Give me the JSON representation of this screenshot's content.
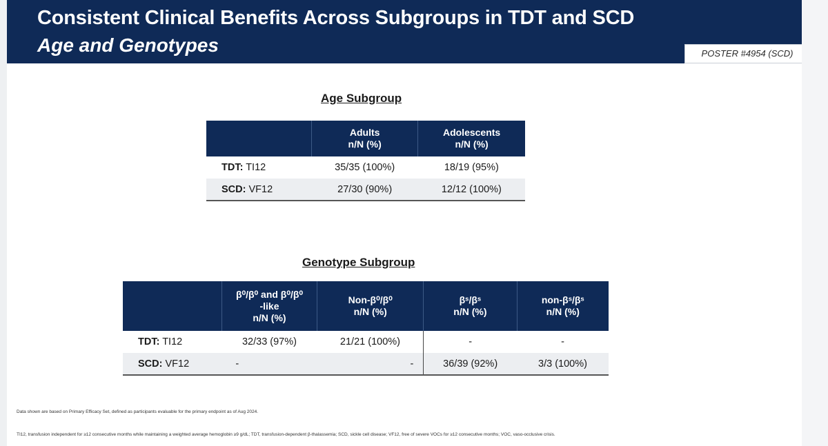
{
  "header": {
    "title_line1": "Consistent Clinical Benefits Across Subgroups in TDT and SCD",
    "title_line2": "Age and Genotypes",
    "poster_tag": "POSTER #4954 (SCD)"
  },
  "age_table": {
    "heading": "Age Subgroup",
    "columns": [
      {
        "line1": "Adults",
        "line2": "n/N (%)"
      },
      {
        "line1": "Adolescents",
        "line2": "n/N (%)"
      }
    ],
    "rows": [
      {
        "label_bold": "TDT:",
        "label_rest": " TI12",
        "cells": [
          "35/35 (100%)",
          "18/19 (95%)"
        ]
      },
      {
        "label_bold": "SCD:",
        "label_rest": " VF12",
        "cells": [
          "27/30 (90%)",
          "12/12 (100%)"
        ]
      }
    ]
  },
  "genotype_table": {
    "heading": "Genotype Subgroup",
    "columns": [
      {
        "line1": "β⁰/β⁰ and β⁰/β⁰",
        "line2": "-like",
        "line3": "n/N (%)"
      },
      {
        "line1": "Non-β⁰/β⁰",
        "line2": "n/N (%)"
      },
      {
        "line1": "βˢ/βˢ",
        "line2": "n/N (%)"
      },
      {
        "line1": "non-βˢ/βˢ",
        "line2": "n/N (%)"
      }
    ],
    "rows": [
      {
        "label_bold": "TDT:",
        "label_rest": " TI12",
        "cells": [
          "32/33 (97%)",
          "21/21 (100%)",
          "-",
          "-"
        ]
      },
      {
        "label_bold": "SCD:",
        "label_rest": " VF12",
        "cells": [
          "-",
          "-",
          "36/39 (92%)",
          "3/3 (100%)"
        ]
      }
    ]
  },
  "footnotes": {
    "data_note": "Data shown are based on Primary Efficacy Set, defined as participants evaluable for the primary endpoint as of Aug 2024.",
    "abbreviations": "TI12, transfusion independent for ≥12 consecutive months while maintaining a weighted average hemoglobin ≥9 g/dL; TDT, transfusion-dependent β-thalassemia; SCD, sickle cell disease; VF12, free of severe VOCs for ≥12 consecutive months; VOC, vaso-occlusive crisis."
  }
}
